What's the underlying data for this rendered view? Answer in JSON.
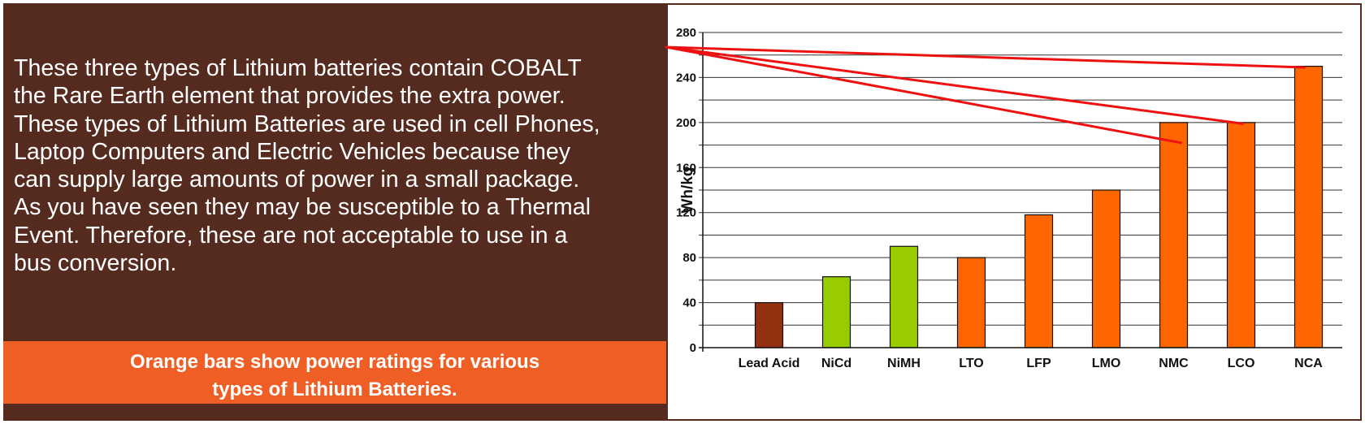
{
  "text_panel": {
    "lines": [
      "These three types of Lithium batteries contain COBALT",
      "the Rare Earth element that provides the extra power.",
      "These types of Lithium Batteries are used in cell Phones,",
      "Laptop Computers and Electric Vehicles because they",
      "can supply large amounts of power in a small package.",
      "As you have seen they may be susceptible to a Thermal",
      "Event. Therefore, these are not acceptable to use in a",
      "bus conversion."
    ]
  },
  "caption": {
    "line1": "Orange bars show power ratings for various",
    "line2": "types of Lithium Batteries."
  },
  "colors": {
    "panel_brown": "#552a1f",
    "caption_orange": "#ef5f25",
    "bar_lead_acid": "#93300f",
    "bar_nickel": "#99cc00",
    "bar_lithium": "#ff6600",
    "pointer_line": "#ee1111"
  },
  "chart_data": {
    "type": "bar",
    "title": "",
    "xlabel": "",
    "ylabel": "Wh/kg",
    "categories": [
      "Lead Acid",
      "NiCd",
      "NiMH",
      "LTO",
      "LFP",
      "LMO",
      "NMC",
      "LCO",
      "NCA"
    ],
    "values": [
      40,
      63,
      90,
      80,
      118,
      140,
      200,
      200,
      250
    ],
    "bar_color_keys": [
      "bar_lead_acid",
      "bar_nickel",
      "bar_nickel",
      "bar_lithium",
      "bar_lithium",
      "bar_lithium",
      "bar_lithium",
      "bar_lithium",
      "bar_lithium"
    ],
    "ylim": [
      0,
      280
    ],
    "yticks": [
      0,
      40,
      80,
      120,
      160,
      200,
      240,
      280
    ],
    "ytick_labels": [
      "0",
      "40",
      "80",
      "120",
      "160",
      "200",
      "240",
      "280"
    ],
    "minor_grid_step": 20,
    "grid": true,
    "legend": "none",
    "annotations": [
      {
        "type": "pointer-line",
        "target_category": "NMC",
        "target_value": 182
      },
      {
        "type": "pointer-line",
        "target_category": "LCO",
        "target_value": 199
      },
      {
        "type": "pointer-line",
        "target_category": "NCA",
        "target_value": 249
      }
    ]
  }
}
